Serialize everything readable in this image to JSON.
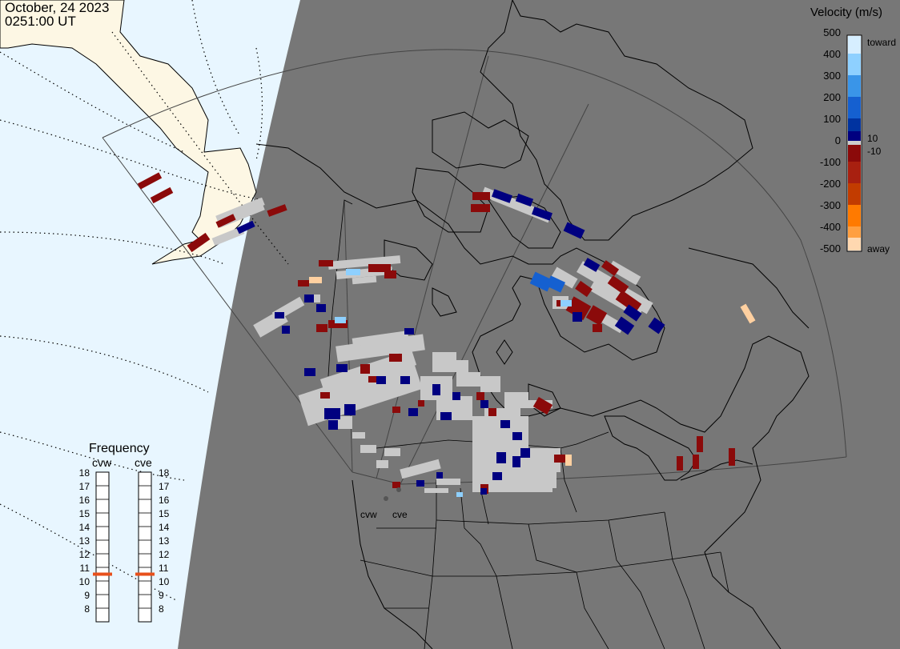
{
  "header": {
    "date": "October, 24 2023",
    "time": "0251:00 UT"
  },
  "colorbar": {
    "title": "Velocity (m/s)",
    "ticks": [
      "500",
      "400",
      "300",
      "200",
      "100",
      "0",
      "-100",
      "-200",
      "-300",
      "-400",
      "-500"
    ],
    "label_toward": "toward",
    "label_away": "away",
    "label_pos_threshold": "10",
    "label_neg_threshold": "-10",
    "colors": [
      "#ffd8b0",
      "#ff9f40",
      "#ff7a00",
      "#e65c00",
      "#c23c00",
      "#8b0a0a",
      "#000080",
      "#0033a0",
      "#1560d0",
      "#3a95e8",
      "#8ed0ff",
      "#d6eeff"
    ]
  },
  "frequency_panel": {
    "title": "Frequency",
    "radars": [
      {
        "code": "cvw",
        "selected_mhz": 11
      },
      {
        "code": "cve",
        "selected_mhz": 11
      }
    ],
    "scale": [
      "18",
      "17",
      "16",
      "15",
      "14",
      "13",
      "12",
      "11",
      "10",
      "9",
      "8"
    ]
  },
  "radar_labels": [
    "cvw",
    "cve"
  ],
  "map_colors": {
    "night": "#777777",
    "day_ocean": "#e8f6ff",
    "day_land": "#fdf7e4",
    "scatter_low": "#c8c8c8",
    "scatter_away": "#8b0a0a",
    "scatter_toward": "#000080",
    "selection_marker": "#e8501c"
  }
}
